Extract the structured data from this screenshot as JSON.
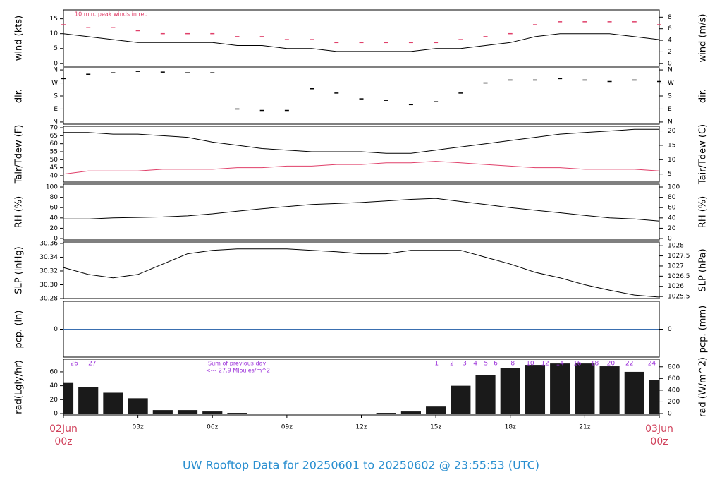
{
  "title": "UW Rooftop Data for 20250601  to  20250602 @ 23:55:53  (UTC)",
  "chart_data": [
    {
      "type": "line",
      "ylabel": "wind (kts)",
      "y2label": "wind (m/s)",
      "annotation": "10 min. peak winds in red",
      "xlim": [
        0,
        24
      ],
      "x": [
        0,
        1,
        2,
        3,
        4,
        5,
        6,
        7,
        8,
        9,
        10,
        11,
        12,
        13,
        14,
        15,
        16,
        17,
        18,
        19,
        20,
        21,
        22,
        23,
        24
      ],
      "ylim": [
        -1,
        18
      ],
      "yticks": [
        0,
        5,
        10,
        15
      ],
      "y2lim": [
        -0.51,
        9.26
      ],
      "y2ticks": [
        0,
        2,
        4,
        6,
        8
      ],
      "series": [
        {
          "color": "#000000",
          "mode": "line",
          "values": [
            10,
            9,
            8,
            7,
            7,
            7,
            7,
            6,
            6,
            5,
            5,
            4,
            4,
            4,
            4,
            5,
            5,
            6,
            7,
            9,
            10,
            10,
            10,
            9,
            8
          ]
        },
        {
          "color": "#e0406a",
          "mode": "dash",
          "values": [
            13,
            12,
            12,
            11,
            10,
            10,
            10,
            9,
            9,
            8,
            8,
            7,
            7,
            7,
            7,
            7,
            8,
            9,
            10,
            13,
            14,
            14,
            14,
            14,
            13
          ]
        }
      ]
    },
    {
      "type": "scatter",
      "ylabel": "dir.",
      "y2label": "dir.",
      "color": "#000000",
      "xlim": [
        0,
        24
      ],
      "x": [
        0,
        1,
        2,
        3,
        4,
        5,
        6,
        7,
        8,
        9,
        10,
        11,
        12,
        13,
        14,
        15,
        16,
        17,
        18,
        19,
        20,
        21,
        22,
        23,
        24
      ],
      "ylim": [
        -15,
        375
      ],
      "yticks": [
        {
          "value": 360,
          "label": "N"
        },
        {
          "value": 270,
          "label": "W"
        },
        {
          "value": 180,
          "label": "S"
        },
        {
          "value": 90,
          "label": "E"
        },
        {
          "value": 0,
          "label": "N"
        }
      ],
      "y2lim": [
        -15,
        375
      ],
      "y2ticks": [
        {
          "value": 360,
          "label": "N"
        },
        {
          "value": 270,
          "label": "W"
        },
        {
          "value": 180,
          "label": "S"
        },
        {
          "value": 90,
          "label": "E"
        },
        {
          "value": 0,
          "label": "N"
        }
      ],
      "values": [
        300,
        330,
        340,
        350,
        345,
        340,
        340,
        90,
        80,
        80,
        230,
        200,
        160,
        150,
        120,
        140,
        200,
        270,
        290,
        290,
        300,
        290,
        280,
        290,
        280
      ]
    },
    {
      "type": "line",
      "ylabel": "Tair/Tdew (F)",
      "y2label": "Tair/Tdew (C)",
      "xlim": [
        0,
        24
      ],
      "x": [
        0,
        1,
        2,
        3,
        4,
        5,
        6,
        7,
        8,
        9,
        10,
        11,
        12,
        13,
        14,
        15,
        16,
        17,
        18,
        19,
        20,
        21,
        22,
        23,
        24
      ],
      "ylim": [
        36,
        70.9
      ],
      "yticks": [
        40,
        45,
        50,
        55,
        60,
        65,
        70
      ],
      "y2lim": [
        2.22,
        21.6
      ],
      "y2ticks": [
        5,
        10,
        15,
        20
      ],
      "series": [
        {
          "color": "#000000",
          "mode": "line",
          "values": [
            67,
            67,
            66,
            66,
            65,
            64,
            61,
            59,
            57,
            56,
            55,
            55,
            55,
            54,
            54,
            56,
            58,
            60,
            62,
            64,
            66,
            67,
            68,
            69,
            69
          ]
        },
        {
          "color": "#e0406a",
          "mode": "line",
          "values": [
            41,
            43,
            43,
            43,
            44,
            44,
            44,
            45,
            45,
            46,
            46,
            47,
            47,
            48,
            48,
            49,
            48,
            47,
            46,
            45,
            45,
            44,
            44,
            44,
            43
          ]
        }
      ]
    },
    {
      "type": "line",
      "ylabel": "RH (%)",
      "y2label": "RH (%)",
      "xlim": [
        0,
        24
      ],
      "x": [
        0,
        1,
        2,
        3,
        4,
        5,
        6,
        7,
        8,
        9,
        10,
        11,
        12,
        13,
        14,
        15,
        16,
        17,
        18,
        19,
        20,
        21,
        22,
        23,
        24
      ],
      "ylim": [
        -2.7,
        105.5
      ],
      "yticks": [
        0,
        20,
        40,
        60,
        80,
        100
      ],
      "y2lim": [
        -2.7,
        105.5
      ],
      "y2ticks": [
        0,
        20,
        40,
        60,
        80,
        100
      ],
      "series": [
        {
          "color": "#000000",
          "mode": "line",
          "values": [
            38,
            38,
            40,
            41,
            42,
            44,
            48,
            53,
            58,
            62,
            66,
            68,
            70,
            73,
            76,
            78,
            72,
            66,
            60,
            55,
            50,
            45,
            40,
            38,
            34
          ]
        }
      ]
    },
    {
      "type": "line",
      "ylabel": "SLP (inHg)",
      "y2label": "SLP (hPa)",
      "xlim": [
        0,
        24
      ],
      "x": [
        0,
        1,
        2,
        3,
        4,
        5,
        6,
        7,
        8,
        9,
        10,
        11,
        12,
        13,
        14,
        15,
        16,
        17,
        18,
        19,
        20,
        21,
        22,
        23,
        24
      ],
      "ylim": [
        30.28,
        30.362
      ],
      "yticks": [
        30.28,
        {
          "value": 30.3,
          "label": "30.30"
        },
        30.32,
        30.34,
        30.36
      ],
      "y2lim": [
        1025.4,
        1028.18
      ],
      "y2ticks": [
        1025.5,
        1026,
        1026.5,
        1027,
        1027.5,
        1028
      ],
      "series": [
        {
          "color": "#000000",
          "mode": "line",
          "values": [
            30.325,
            30.315,
            30.31,
            30.315,
            30.33,
            30.345,
            30.35,
            30.352,
            30.352,
            30.352,
            30.35,
            30.348,
            30.345,
            30.345,
            30.35,
            30.35,
            30.35,
            30.34,
            30.33,
            30.318,
            30.31,
            30.3,
            30.292,
            30.285,
            30.282
          ]
        }
      ]
    },
    {
      "type": "line",
      "ylabel": "pcp. (in)",
      "y2label": "pcp. (mm)",
      "xlim": [
        0,
        24
      ],
      "x": [
        0,
        1,
        2,
        3,
        4,
        5,
        6,
        7,
        8,
        9,
        10,
        11,
        12,
        13,
        14,
        15,
        16,
        17,
        18,
        19,
        20,
        21,
        22,
        23,
        24
      ],
      "ylim": [
        -1,
        1
      ],
      "yticks": [
        0
      ],
      "y2lim": [
        -25.4,
        25.4
      ],
      "y2ticks": [
        0
      ],
      "series": [
        {
          "color": "#3a6fb0",
          "mode": "line",
          "values": [
            0,
            0,
            0,
            0,
            0,
            0,
            0,
            0,
            0,
            0,
            0,
            0,
            0,
            0,
            0,
            0,
            0,
            0,
            0,
            0,
            0,
            0,
            0,
            0,
            0
          ]
        }
      ]
    },
    {
      "type": "bar",
      "ylabel": "rad(Lgly/hr)",
      "y2label": "rad (W/m^2)",
      "color": "#1a1a1a",
      "annotation": [
        "Sum of previous day",
        "<--- 27.9 MJoules/m^2"
      ],
      "hour_marks": {
        "x": [
          0.43,
          1.16,
          15.03,
          15.65,
          16.16,
          16.59,
          17.02,
          17.41,
          18.1,
          18.8,
          19.4,
          20.0,
          20.7,
          21.4,
          22.05,
          22.8,
          23.7
        ],
        "labels": [
          "26",
          "27",
          "1",
          "2",
          "3",
          "4",
          "5",
          "6",
          "8",
          "10",
          "12",
          "14",
          "16",
          "18",
          "20",
          "22",
          "24"
        ]
      },
      "xlim": [
        0,
        24
      ],
      "x": [
        0,
        1,
        2,
        3,
        4,
        5,
        6,
        7,
        8,
        9,
        10,
        11,
        12,
        13,
        14,
        15,
        16,
        17,
        18,
        19,
        20,
        21,
        22,
        23,
        24
      ],
      "xticks": [
        {
          "value": 3,
          "label": "03z"
        },
        {
          "value": 6,
          "label": "06z"
        },
        {
          "value": 9,
          "label": "09z"
        },
        {
          "value": 12,
          "label": "12z"
        },
        {
          "value": 15,
          "label": "15z"
        },
        {
          "value": 18,
          "label": "18z"
        },
        {
          "value": 21,
          "label": "21z"
        }
      ],
      "x_start_label": [
        "02Jun",
        "00z"
      ],
      "x_end_label": [
        "03Jun",
        "00z"
      ],
      "ylim": [
        -2,
        78.2
      ],
      "yticks": [
        0,
        20,
        40,
        60
      ],
      "y2lim": [
        -24,
        930
      ],
      "y2ticks": [
        0,
        200,
        400,
        600,
        800
      ],
      "values": [
        44,
        38,
        30,
        22,
        5,
        5,
        3,
        1,
        0,
        0,
        0,
        0,
        0,
        1,
        3,
        10,
        40,
        55,
        65,
        70,
        72,
        72,
        68,
        60,
        48
      ]
    }
  ]
}
